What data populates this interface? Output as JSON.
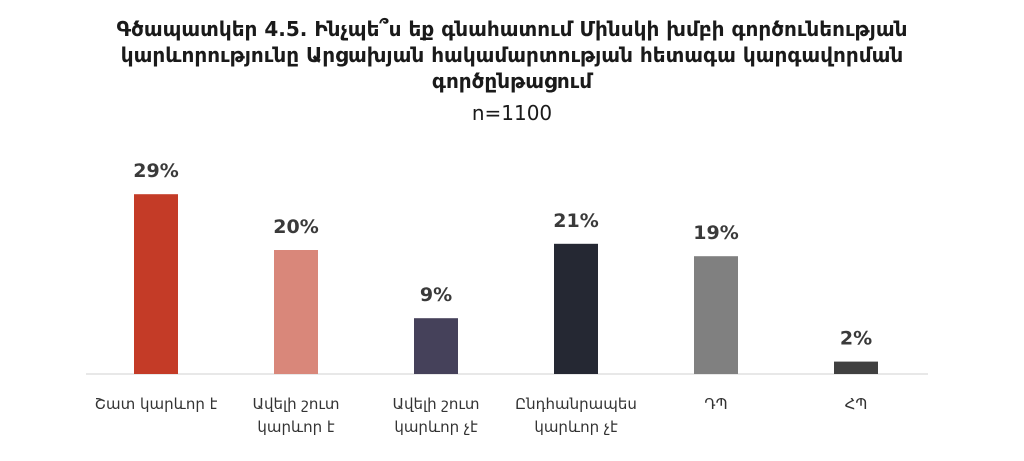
{
  "chart_data": {
    "type": "bar",
    "title": "Գծապատկեր 4.5. Ինչպե՞ս եք գնահատում Մինսկի խմբի գործունեության կարևորությունը Արցախյան հակամարտության հետագա կարգավորման գործընթացում",
    "title_lines": [
      "Գծապատկեր 4.5. Ինչպե՞ս եք գնահատում Մինսկի խմբի գործունեության",
      "կարևորությունը Արցախյան հակամարտության հետագա կարգավորման",
      "գործընթացում"
    ],
    "subtitle": "n=1100",
    "categories": [
      "Շատ կարևոր է",
      "Ավելի շուտ կարևոր է",
      "Ավելի շուտ կարևոր չէ",
      "Ընդհանրապես կարևոր չէ",
      "ԴՊ",
      "ՀՊ"
    ],
    "category_lines": [
      [
        "Շատ կարևոր է"
      ],
      [
        "Ավելի շուտ",
        "կարևոր է"
      ],
      [
        "Ավելի շուտ",
        "կարևոր չէ"
      ],
      [
        "Ընդհանրապես",
        "կարևոր չէ"
      ],
      [
        "ԴՊ"
      ],
      [
        "ՀՊ"
      ]
    ],
    "values": [
      29,
      20,
      9,
      21,
      19,
      2
    ],
    "value_labels": [
      "29%",
      "20%",
      "9%",
      "21%",
      "19%",
      "2%"
    ],
    "colors": [
      "#c43b27",
      "#d9877a",
      "#45415a",
      "#252833",
      "#808080",
      "#404040"
    ],
    "ylim": [
      0,
      30
    ],
    "grid": false,
    "xlabel": "",
    "ylabel": ""
  }
}
